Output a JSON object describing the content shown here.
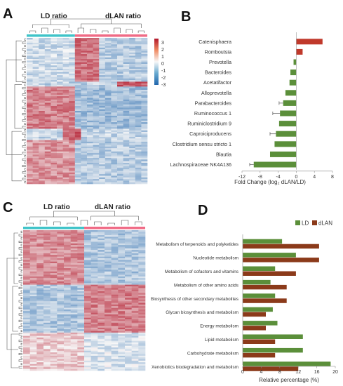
{
  "panels": {
    "a": {
      "letter": "A"
    },
    "b": {
      "letter": "B"
    },
    "c": {
      "letter": "C"
    },
    "d": {
      "letter": "D"
    }
  },
  "heatmap_a": {
    "label_left": "LD ratio",
    "label_right": "dLAN ratio",
    "colorbar_ticks": [
      "3",
      "2",
      "1",
      "0",
      "-1",
      "-2",
      "-3"
    ],
    "colors": {
      "high": "#b2182b",
      "mid": "#f7f7f7",
      "low": "#2166ac"
    }
  },
  "heatmap_c": {
    "label_left": "LD ratio",
    "label_right": "dLAN ratio"
  },
  "chart_data": [
    {
      "type": "bar",
      "orientation": "horizontal",
      "categories": [
        "Catenisphaera",
        "Romboutsia",
        "Prevotella",
        "Bacteroides",
        "Acetatifactor",
        "Alloprevotella",
        "Parabacteroides",
        "Ruminococcus 1",
        "Ruminiclostridium 9",
        "Caproiciproducens",
        "Clostridium sensu stricto 1",
        "Blautia",
        "Lachnospiraceae NK4A136"
      ],
      "values": [
        5.8,
        1.4,
        -0.6,
        -1.3,
        -1.5,
        -2.4,
        -2.9,
        -3.6,
        -3.8,
        -4.5,
        -4.8,
        -5.8,
        -9.4
      ],
      "errors": [
        0,
        0,
        0,
        0,
        0,
        0,
        0.9,
        1.6,
        0,
        1.3,
        0,
        0,
        0.9
      ],
      "colors": {
        "positive": "#c0392b",
        "negative": "#5b8f3a"
      },
      "xlabel": "Fold Change (log₂ dLAN/LD)",
      "xticks": [
        "-12",
        "-8",
        "-4",
        "0",
        "4",
        "8"
      ],
      "xlim": [
        -12,
        8
      ]
    },
    {
      "type": "bar",
      "orientation": "horizontal",
      "categories": [
        "Metabolism of terpenoids and polyketides",
        "Nucleotide metabolism",
        "Metabolism of cofactors and vitamins",
        "Metabolism of other amino acids",
        "Biosynthesis of other secondary metabolites",
        "Glycan biosynthesis and metabolism",
        "Energy metabolism",
        "Lipid metabolism",
        "Carbohydrate metabolism",
        "Xenobiotics biodegradation and metabolism"
      ],
      "series": [
        {
          "name": "LD",
          "values": [
            8.5,
            11.5,
            7.0,
            6.0,
            7.0,
            6.5,
            7.5,
            13.0,
            13.0,
            19.0
          ],
          "color": "#5b8f3a"
        },
        {
          "name": "dLAN",
          "values": [
            16.5,
            16.5,
            11.5,
            9.5,
            9.5,
            5.0,
            5.0,
            7.0,
            7.0,
            12.0
          ],
          "color": "#8b3a1a"
        }
      ],
      "xlabel": "Relative percentage (%)",
      "xticks": [
        "0",
        "4",
        "8",
        "12",
        "16",
        "20"
      ],
      "xlim": [
        0,
        20
      ],
      "legend": "top-right"
    }
  ]
}
